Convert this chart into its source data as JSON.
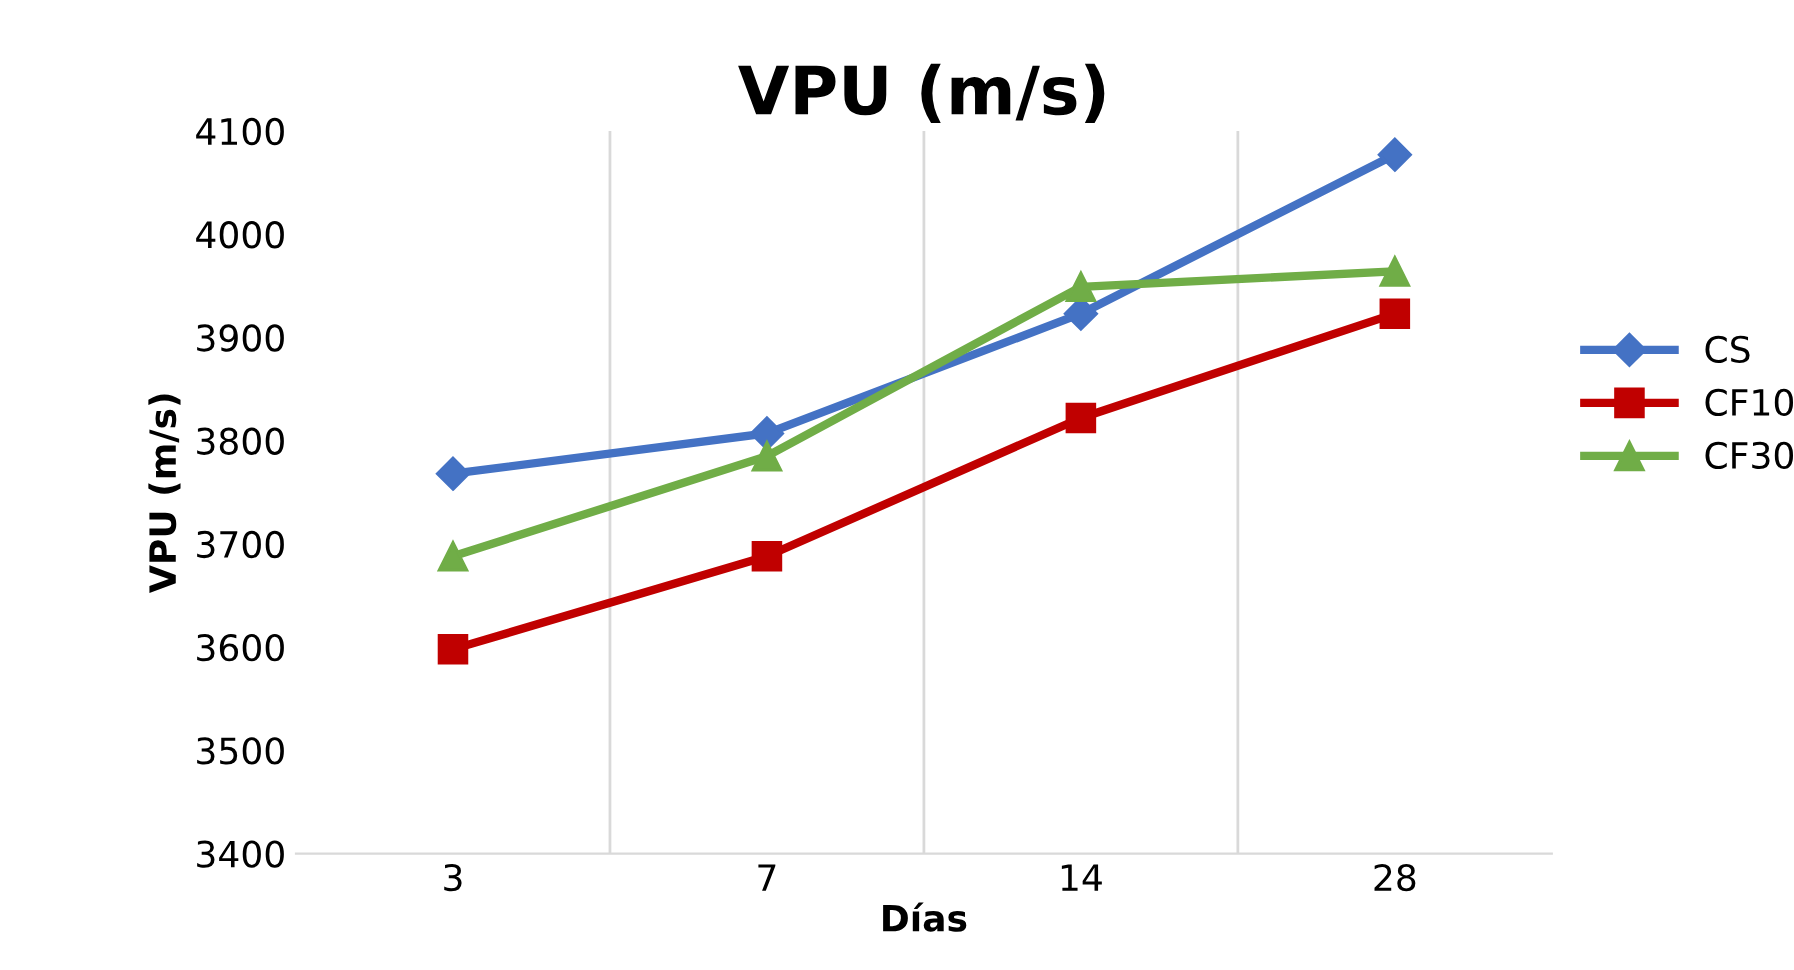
{
  "chart_data": {
    "type": "line",
    "title": "VPU (m/s)",
    "xlabel": "Días",
    "ylabel": "VPU (m/s)",
    "categories": [
      "3",
      "7",
      "14",
      "28"
    ],
    "series": [
      {
        "name": "CS",
        "color": "#4472c4",
        "marker": "diamond",
        "values": [
          3768,
          3807,
          3923,
          4077
        ]
      },
      {
        "name": "CF10",
        "color": "#c00000",
        "marker": "square",
        "values": [
          3598,
          3688,
          3822,
          3923
        ]
      },
      {
        "name": "CF30",
        "color": "#70ad47",
        "marker": "triangle",
        "values": [
          3688,
          3785,
          3949,
          3964
        ]
      }
    ],
    "ylim": [
      3400,
      4100
    ],
    "yticks": [
      3400,
      3500,
      3600,
      3700,
      3800,
      3900,
      4000,
      4100
    ],
    "grid": "x",
    "legend": "right",
    "line_style": "solid"
  }
}
